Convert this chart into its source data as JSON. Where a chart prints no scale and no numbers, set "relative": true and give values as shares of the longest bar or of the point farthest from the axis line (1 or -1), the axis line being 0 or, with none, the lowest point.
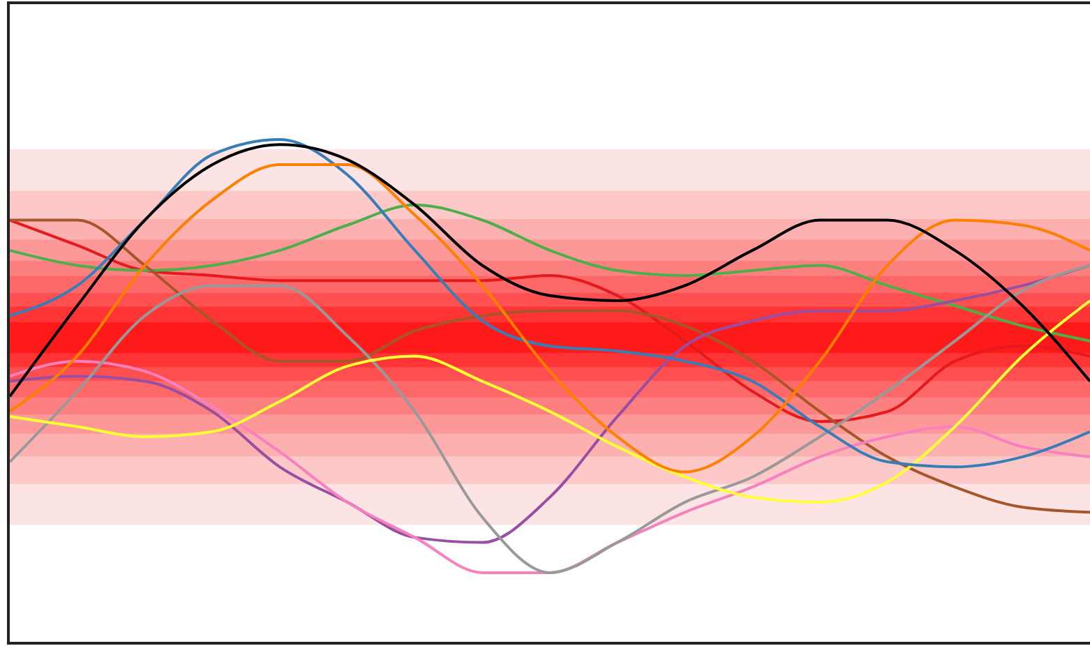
{
  "chart_data": {
    "type": "line",
    "relative": true,
    "grid": false,
    "legend": false,
    "marker": "none",
    "line_style": "solid",
    "categories": [
      null,
      null,
      null,
      null,
      null,
      null,
      null,
      null,
      null,
      null,
      null,
      null,
      null,
      null,
      null,
      null,
      null
    ],
    "bands": [
      {
        "axis": "y",
        "from": 0.235,
        "to": 0.981,
        "color": "#fde4e4"
      },
      {
        "axis": "y",
        "from": 0.316,
        "to": 0.898,
        "color": "#fdc8c8"
      },
      {
        "axis": "y",
        "from": 0.371,
        "to": 0.842,
        "color": "#fdb0b0"
      },
      {
        "axis": "y",
        "from": 0.416,
        "to": 0.801,
        "color": "#fd9898"
      },
      {
        "axis": "y",
        "from": 0.454,
        "to": 0.759,
        "color": "#fd8080"
      },
      {
        "axis": "y",
        "from": 0.488,
        "to": 0.729,
        "color": "#fe6868"
      },
      {
        "axis": "y",
        "from": 0.521,
        "to": 0.695,
        "color": "#fe5050"
      },
      {
        "axis": "y",
        "from": 0.548,
        "to": 0.668,
        "color": "#ff3535"
      },
      {
        "axis": "y",
        "from": 0.576,
        "to": 0.637,
        "color": "#ff1a1a"
      }
    ],
    "series": [
      {
        "color": "#e41a1c",
        "values": [
          0.84,
          0.79,
          0.74,
          0.73,
          0.72,
          0.72,
          0.72,
          0.72,
          0.73,
          0.69,
          0.6,
          0.5,
          0.44,
          0.46,
          0.56,
          0.59,
          0.57
        ]
      },
      {
        "color": "#4daf4a",
        "values": [
          0.78,
          0.75,
          0.74,
          0.75,
          0.78,
          0.83,
          0.87,
          0.84,
          0.78,
          0.74,
          0.73,
          0.74,
          0.75,
          0.71,
          0.67,
          0.63,
          0.6
        ]
      },
      {
        "color": "#a65628",
        "values": [
          0.84,
          0.84,
          0.75,
          0.64,
          0.56,
          0.56,
          0.62,
          0.65,
          0.66,
          0.66,
          0.63,
          0.56,
          0.46,
          0.37,
          0.31,
          0.27,
          0.26
        ]
      },
      {
        "color": "#984ea3",
        "values": [
          0.52,
          0.53,
          0.52,
          0.46,
          0.35,
          0.28,
          0.21,
          0.2,
          0.29,
          0.45,
          0.59,
          0.64,
          0.66,
          0.66,
          0.68,
          0.71,
          0.75
        ]
      },
      {
        "color": "#f781bf",
        "values": [
          0.53,
          0.56,
          0.54,
          0.47,
          0.38,
          0.28,
          0.21,
          0.14,
          0.14,
          0.2,
          0.26,
          0.31,
          0.37,
          0.41,
          0.43,
          0.39,
          0.37
        ]
      },
      {
        "color": "#999999",
        "values": [
          0.36,
          0.5,
          0.65,
          0.71,
          0.71,
          0.61,
          0.46,
          0.25,
          0.14,
          0.2,
          0.28,
          0.33,
          0.41,
          0.5,
          0.6,
          0.7,
          0.75
        ]
      },
      {
        "color": "#ffff33",
        "values": [
          0.45,
          0.43,
          0.41,
          0.42,
          0.48,
          0.55,
          0.57,
          0.52,
          0.46,
          0.39,
          0.33,
          0.29,
          0.28,
          0.32,
          0.43,
          0.57,
          0.68
        ]
      },
      {
        "color": "#377eb8",
        "values": [
          0.65,
          0.71,
          0.84,
          0.97,
          1,
          0.93,
          0.78,
          0.64,
          0.59,
          0.58,
          0.56,
          0.52,
          0.43,
          0.36,
          0.35,
          0.37,
          0.42
        ]
      },
      {
        "color": "#ff7f00",
        "values": [
          0.46,
          0.57,
          0.75,
          0.88,
          0.95,
          0.95,
          0.85,
          0.71,
          0.54,
          0.41,
          0.34,
          0.41,
          0.56,
          0.75,
          0.84,
          0.83,
          0.78
        ]
      },
      {
        "color": "#000000",
        "values": [
          0.49,
          0.67,
          0.84,
          0.95,
          0.99,
          0.96,
          0.87,
          0.75,
          0.69,
          0.68,
          0.71,
          0.78,
          0.84,
          0.84,
          0.78,
          0.67,
          0.52
        ]
      }
    ]
  }
}
